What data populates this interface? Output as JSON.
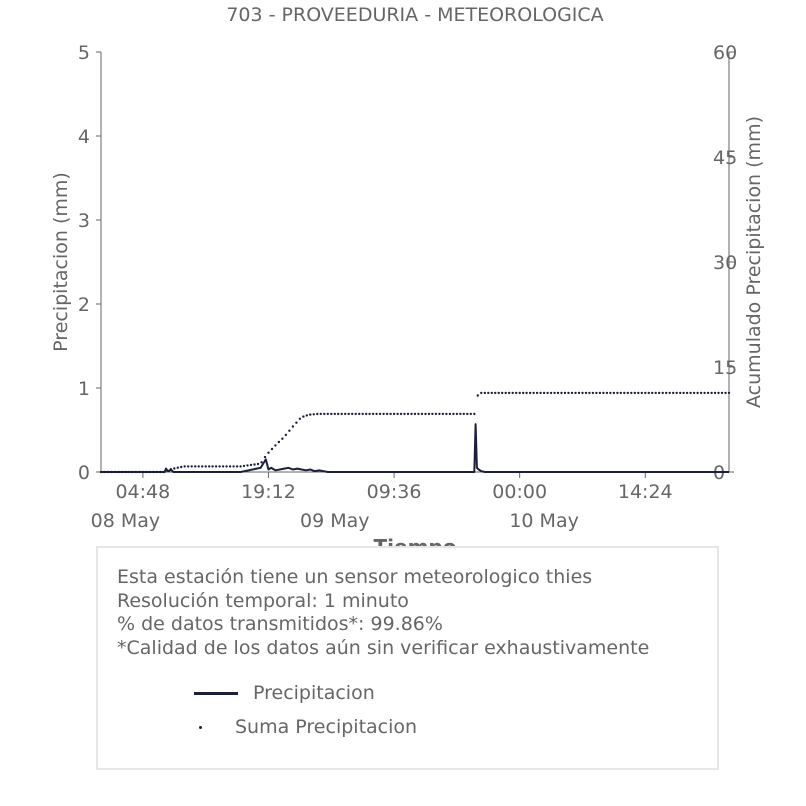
{
  "chart_data": {
    "type": "line",
    "title": "703 - PROVEEDURIA - METEOROLOGICA",
    "xlabel": "Tiempo",
    "ylabel": "Precipitacion (mm)",
    "y2label": "Acumulado Precipitacion (mm)",
    "ylim": [
      0,
      5
    ],
    "y2lim": [
      0,
      60
    ],
    "yticks": [
      "0",
      "1",
      "2",
      "3",
      "4",
      "5"
    ],
    "y2ticks": [
      "0",
      "15",
      "30",
      "45",
      "60"
    ],
    "xlim_hours": [
      0,
      72
    ],
    "xticks": [
      {
        "h": 4.8,
        "label": "04:48"
      },
      {
        "h": 19.2,
        "label": "19:12"
      },
      {
        "h": 33.6,
        "label": "09:36"
      },
      {
        "h": 48,
        "label": "00:00"
      },
      {
        "h": 62.4,
        "label": "14:24"
      }
    ],
    "date_labels": [
      {
        "h": 2.8,
        "label": "08 May"
      },
      {
        "h": 26.8,
        "label": "09 May"
      },
      {
        "h": 50.8,
        "label": "10 May"
      }
    ],
    "grid": false,
    "legend_position": "bottom",
    "series": [
      {
        "name": "Precipitacion",
        "style": "solid",
        "axis": "left",
        "color": "#1b1f3b",
        "x": [
          0,
          7.3,
          7.45,
          7.6,
          7.8,
          8.0,
          8.3,
          9.0,
          12,
          16,
          18.3,
          18.6,
          18.9,
          19.2,
          19.5,
          20.0,
          20.5,
          21.0,
          21.5,
          22.0,
          22.5,
          23.0,
          23.5,
          24.0,
          24.5,
          25.0,
          26.0,
          30,
          35,
          40.8,
          42.8,
          42.95,
          43.1,
          43.3,
          43.6,
          44.0,
          50,
          60,
          72
        ],
        "y": [
          0,
          0,
          0.04,
          0.02,
          0.01,
          0.03,
          0,
          0,
          0,
          0,
          0.05,
          0.1,
          0.15,
          0.03,
          0.05,
          0.02,
          0.03,
          0.04,
          0.05,
          0.03,
          0.04,
          0.03,
          0.02,
          0.03,
          0.01,
          0.02,
          0,
          0,
          0,
          0,
          0,
          0.57,
          0.05,
          0.03,
          0.01,
          0,
          0,
          0,
          0
        ]
      },
      {
        "name": "Suma Precipitacion",
        "style": "dotted",
        "axis": "right",
        "color": "#1b1f3b",
        "x": [
          0,
          7.3,
          8.0,
          9.5,
          16,
          18.3,
          19.0,
          20.0,
          21.0,
          22.0,
          22.8,
          23.3,
          24.0,
          25.0,
          26.0,
          30,
          35,
          40.8,
          42.9,
          43.1,
          43.5,
          45,
          50,
          60,
          72
        ],
        "y": [
          0,
          0,
          0.4,
          0.8,
          0.8,
          1.2,
          2.5,
          3.8,
          5.0,
          6.5,
          7.6,
          8.0,
          8.2,
          8.3,
          8.3,
          8.3,
          8.3,
          8.3,
          8.3,
          10.8,
          11.3,
          11.3,
          11.3,
          11.3,
          11.3
        ]
      }
    ]
  },
  "info_box": {
    "lines": [
      "Esta estación tiene un sensor meteorologico thies",
      "Resolución temporal: 1 minuto",
      "% de datos transmitidos*: 99.86%",
      "*Calidad de los datos aún sin verificar exhaustivamente"
    ],
    "legend": [
      {
        "label": "Precipitacion"
      },
      {
        "label": "Suma Precipitacion"
      }
    ]
  }
}
